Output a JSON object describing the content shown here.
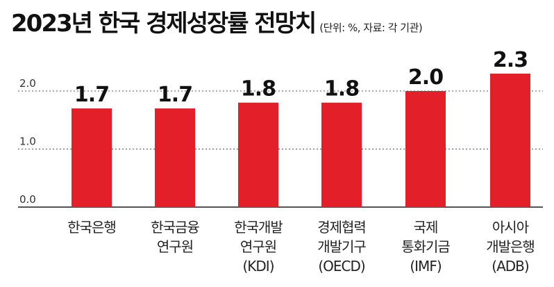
{
  "title": "2023년 한국 경제성장률 전망치",
  "note": "(단위: %, 자료: 각 기관)",
  "colors": {
    "bar": "#e3202a",
    "grid": "#555555",
    "text": "#111111"
  },
  "chart_data": {
    "type": "bar",
    "title": "2023년 한국 경제성장률 전망치",
    "categories": [
      [
        "한국은행"
      ],
      [
        "한국금융",
        "연구원"
      ],
      [
        "한국개발",
        "연구원",
        "(KDI)"
      ],
      [
        "경제협력",
        "개발기구",
        "(OECD)"
      ],
      [
        "국제",
        "통화기금",
        "(IMF)"
      ],
      [
        "아시아",
        "개발은행",
        "(ADB)"
      ]
    ],
    "values": [
      1.7,
      1.7,
      1.8,
      1.8,
      2.0,
      2.3
    ],
    "value_labels": [
      "1.7",
      "1.7",
      "1.8",
      "1.8",
      "2.0",
      "2.3"
    ],
    "y_ticks": [
      "0.0",
      "1.0",
      "2.0"
    ],
    "y_tick_values": [
      0,
      1,
      2
    ],
    "ylim": [
      0,
      2.3
    ],
    "grid": true,
    "xlabel": "",
    "ylabel": ""
  }
}
